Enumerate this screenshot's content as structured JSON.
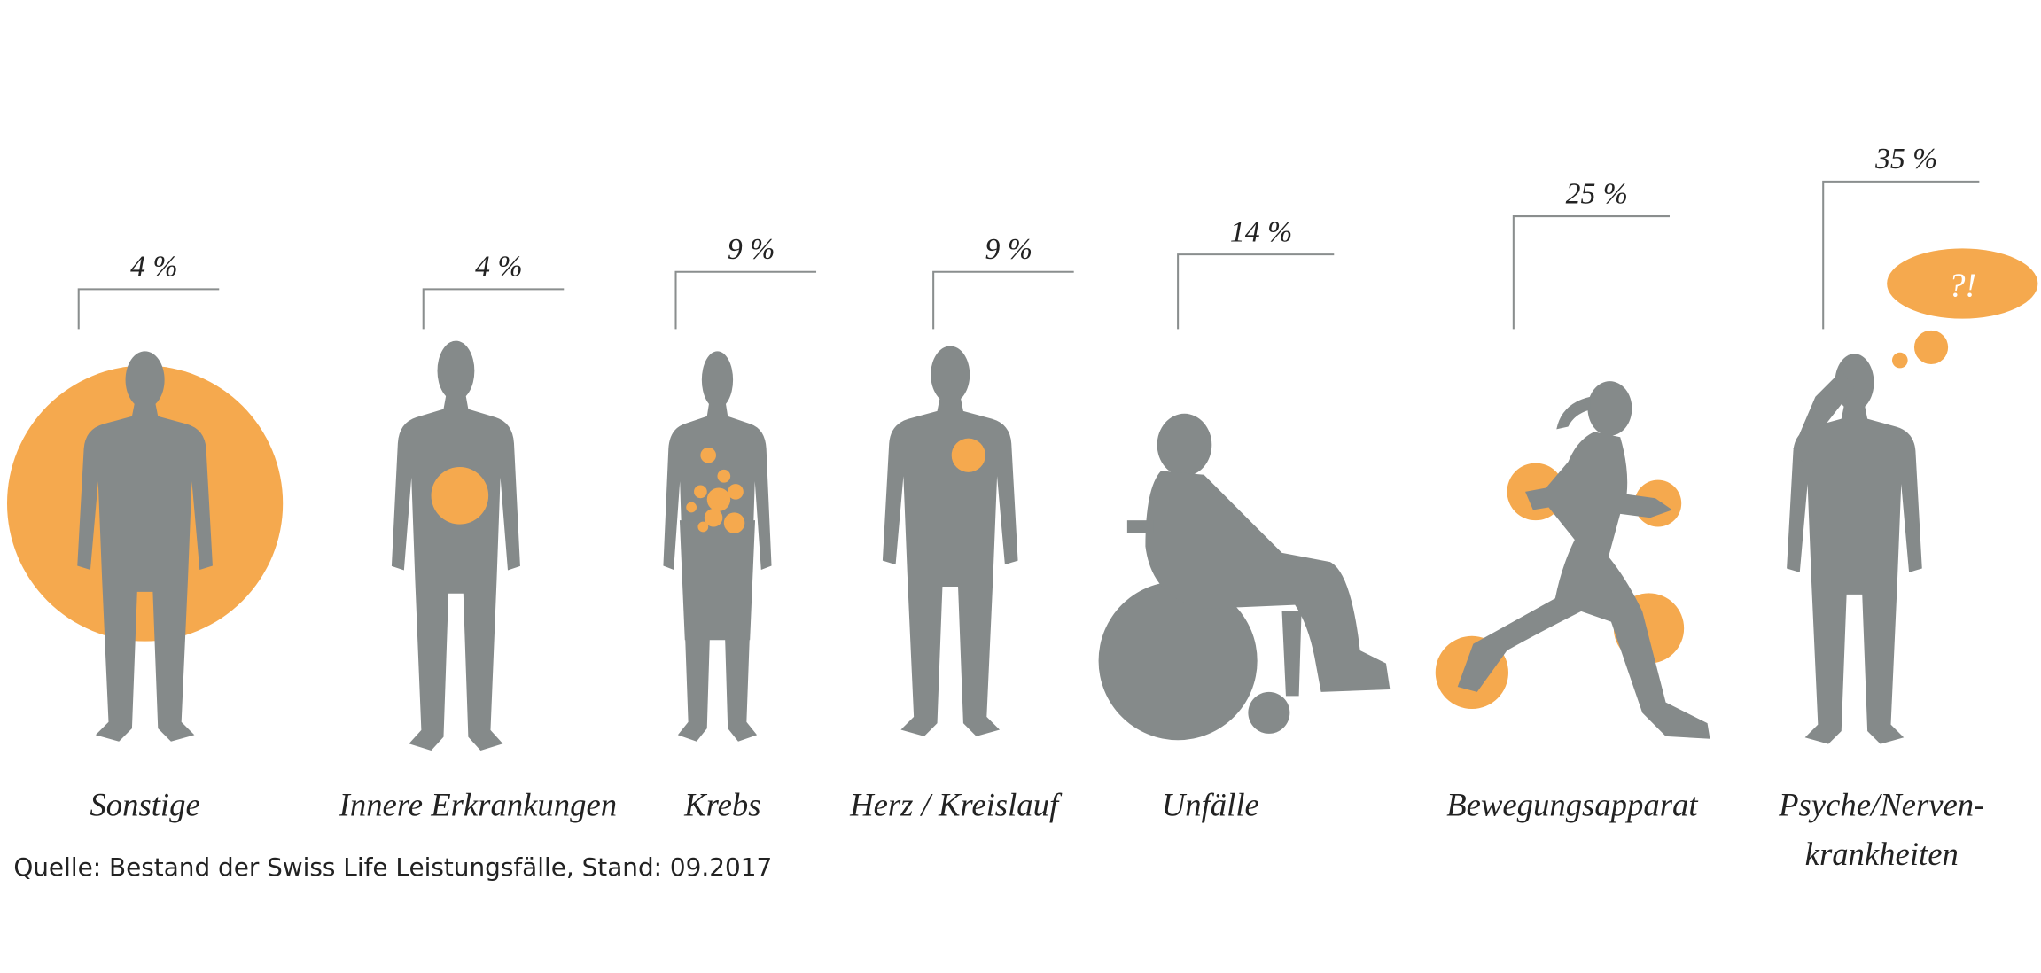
{
  "chart_data": {
    "type": "bracket",
    "categories": [
      "Sonstige",
      "Innere Erkrankungen",
      "Krebs",
      "Herz / Kreislauf",
      "Unfälle",
      "Bewegungsapparat",
      "Psyche/Nerven-\nkrankheiten"
    ],
    "values": [
      4,
      4,
      9,
      9,
      14,
      25,
      35
    ],
    "value_labels": [
      "4 %",
      "4 %",
      "9 %",
      "9 %",
      "14 %",
      "25 %",
      "35 %"
    ],
    "color": "#8a8e8e",
    "annotation": "?!",
    "source": "Quelle: Bestand der Swiss Life Leistungsfälle, Stand: 09.2017"
  }
}
